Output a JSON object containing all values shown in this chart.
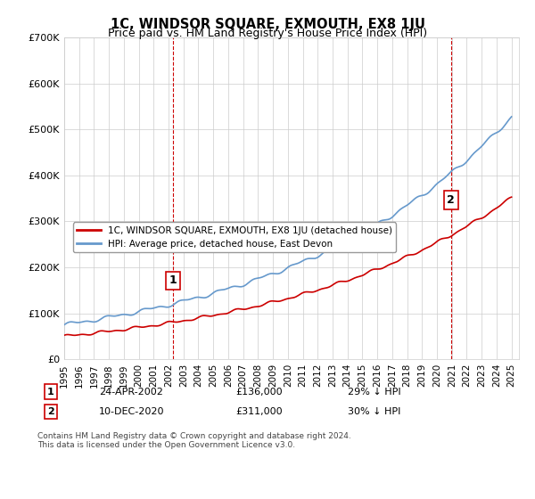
{
  "title": "1C, WINDSOR SQUARE, EXMOUTH, EX8 1JU",
  "subtitle": "Price paid vs. HM Land Registry's House Price Index (HPI)",
  "ylabel_ticks": [
    "£0",
    "£100K",
    "£200K",
    "£300K",
    "£400K",
    "£500K",
    "£600K",
    "£700K"
  ],
  "ylim": [
    0,
    700000
  ],
  "xlim_start": 1995.0,
  "xlim_end": 2025.5,
  "red_line_color": "#cc0000",
  "blue_line_color": "#6699cc",
  "marker1_x": 2002.31,
  "marker1_y": 136000,
  "marker1_label": "1",
  "marker2_x": 2020.94,
  "marker2_y": 311000,
  "marker2_label": "2",
  "vline1_x": 2002.31,
  "vline2_x": 2020.94,
  "legend_line1": "1C, WINDSOR SQUARE, EXMOUTH, EX8 1JU (detached house)",
  "legend_line2": "HPI: Average price, detached house, East Devon",
  "annotation1_date": "24-APR-2002",
  "annotation1_price": "£136,000",
  "annotation1_hpi": "29% ↓ HPI",
  "annotation2_date": "10-DEC-2020",
  "annotation2_price": "£311,000",
  "annotation2_hpi": "30% ↓ HPI",
  "footnote1": "Contains HM Land Registry data © Crown copyright and database right 2024.",
  "footnote2": "This data is licensed under the Open Government Licence v3.0.",
  "background_color": "#ffffff",
  "grid_color": "#cccccc"
}
